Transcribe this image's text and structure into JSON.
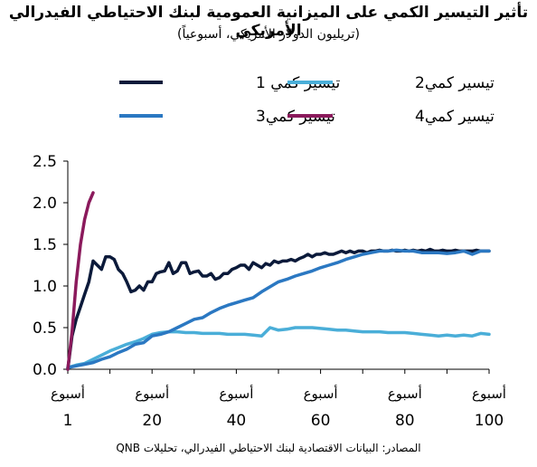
{
  "title": "تأثير التيسير الكمي على الميزانية العمومية لبنك الاحتياطي الفيدرالي الأمريكي",
  "subtitle": "(تريليون الدولار الأمريكي، أسبوعياً)",
  "source": "المصادر: البيانات الاقتصادية لبنك الاحتياطي الفيدرالي، تحليلات QNB",
  "chart_data": {
    "type": "line",
    "xlabel_prefix": "أسبوع",
    "xlim": [
      1,
      100
    ],
    "ylim": [
      0,
      2.5
    ],
    "xticks": [
      1,
      20,
      40,
      60,
      80,
      100
    ],
    "xtick_positions": [
      0,
      20,
      40,
      60,
      80,
      100
    ],
    "yticks": [
      "0.0",
      "0.5",
      "1.0",
      "1.5",
      "2.0",
      "2.5"
    ],
    "ytick_values": [
      0,
      0.5,
      1.0,
      1.5,
      2.0,
      2.5
    ],
    "legend_placement": "top",
    "series": [
      {
        "name": "تيسير كمي 1",
        "color": "#0b1a3a",
        "x": [
          0,
          1,
          2,
          3,
          4,
          5,
          6,
          7,
          8,
          9,
          10,
          11,
          12,
          13,
          14,
          15,
          16,
          17,
          18,
          19,
          20,
          21,
          22,
          23,
          24,
          25,
          26,
          27,
          28,
          29,
          30,
          31,
          32,
          33,
          34,
          35,
          36,
          37,
          38,
          39,
          40,
          41,
          42,
          43,
          44,
          45,
          46,
          47,
          48,
          49,
          50,
          51,
          52,
          53,
          54,
          55,
          56,
          57,
          58,
          59,
          60,
          61,
          62,
          63,
          64,
          65,
          66,
          67,
          68,
          69,
          70,
          71,
          72,
          73,
          74,
          75,
          76,
          77,
          78,
          79,
          80,
          81,
          82,
          83,
          84,
          85,
          86,
          87,
          88,
          89,
          90,
          91,
          92,
          93,
          94,
          95,
          96,
          97,
          98,
          99,
          100
        ],
        "values": [
          0.0,
          0.4,
          0.6,
          0.75,
          0.9,
          1.05,
          1.3,
          1.25,
          1.2,
          1.35,
          1.35,
          1.32,
          1.2,
          1.15,
          1.05,
          0.93,
          0.95,
          1.0,
          0.95,
          1.05,
          1.05,
          1.15,
          1.17,
          1.18,
          1.28,
          1.15,
          1.18,
          1.28,
          1.28,
          1.15,
          1.17,
          1.18,
          1.12,
          1.12,
          1.15,
          1.08,
          1.1,
          1.15,
          1.15,
          1.2,
          1.22,
          1.25,
          1.25,
          1.2,
          1.28,
          1.25,
          1.22,
          1.27,
          1.25,
          1.3,
          1.28,
          1.3,
          1.3,
          1.32,
          1.3,
          1.33,
          1.35,
          1.38,
          1.35,
          1.38,
          1.38,
          1.4,
          1.38,
          1.38,
          1.4,
          1.42,
          1.4,
          1.42,
          1.4,
          1.42,
          1.42,
          1.4,
          1.42,
          1.42,
          1.43,
          1.42,
          1.42,
          1.43,
          1.42,
          1.42,
          1.43,
          1.42,
          1.43,
          1.42,
          1.43,
          1.42,
          1.44,
          1.42,
          1.42,
          1.43,
          1.42,
          1.42,
          1.43,
          1.42,
          1.42,
          1.42,
          1.42,
          1.43,
          1.42,
          1.42,
          1.42
        ]
      },
      {
        "name": "تيسير كمي2",
        "color": "#4aaed8",
        "x": [
          0,
          2,
          4,
          6,
          8,
          10,
          12,
          14,
          16,
          18,
          20,
          22,
          24,
          26,
          28,
          30,
          32,
          34,
          36,
          38,
          40,
          42,
          44,
          46,
          48,
          50,
          52,
          54,
          56,
          58,
          60,
          62,
          64,
          66,
          68,
          70,
          72,
          74,
          76,
          78,
          80,
          82,
          84,
          86,
          88,
          90,
          92,
          94,
          96,
          98,
          100
        ],
        "values": [
          0.02,
          0.05,
          0.07,
          0.12,
          0.17,
          0.22,
          0.26,
          0.3,
          0.33,
          0.37,
          0.42,
          0.44,
          0.45,
          0.45,
          0.44,
          0.44,
          0.43,
          0.43,
          0.43,
          0.42,
          0.42,
          0.42,
          0.41,
          0.4,
          0.5,
          0.47,
          0.48,
          0.5,
          0.5,
          0.5,
          0.49,
          0.48,
          0.47,
          0.47,
          0.46,
          0.45,
          0.45,
          0.45,
          0.44,
          0.44,
          0.44,
          0.43,
          0.42,
          0.41,
          0.4,
          0.41,
          0.4,
          0.41,
          0.4,
          0.43,
          0.42
        ]
      },
      {
        "name": "تيسير كمي3",
        "color": "#2b78c2",
        "x": [
          0,
          2,
          4,
          6,
          8,
          10,
          12,
          14,
          16,
          18,
          20,
          22,
          24,
          26,
          28,
          30,
          32,
          34,
          36,
          38,
          40,
          42,
          44,
          46,
          48,
          50,
          52,
          54,
          56,
          58,
          60,
          62,
          64,
          66,
          68,
          70,
          72,
          74,
          76,
          78,
          80,
          82,
          84,
          86,
          88,
          90,
          92,
          94,
          96,
          98,
          100
        ],
        "values": [
          0.02,
          0.04,
          0.06,
          0.08,
          0.12,
          0.15,
          0.2,
          0.24,
          0.3,
          0.32,
          0.4,
          0.42,
          0.45,
          0.5,
          0.55,
          0.6,
          0.62,
          0.68,
          0.73,
          0.77,
          0.8,
          0.83,
          0.86,
          0.93,
          0.99,
          1.05,
          1.08,
          1.12,
          1.15,
          1.18,
          1.22,
          1.25,
          1.28,
          1.32,
          1.35,
          1.38,
          1.4,
          1.42,
          1.42,
          1.43,
          1.42,
          1.42,
          1.4,
          1.4,
          1.4,
          1.39,
          1.4,
          1.42,
          1.38,
          1.42,
          1.42
        ]
      },
      {
        "name": "تيسير كمي4",
        "color": "#8b1a5c",
        "x": [
          0,
          1,
          2,
          3,
          4,
          5,
          6
        ],
        "values": [
          0.0,
          0.45,
          1.05,
          1.5,
          1.8,
          2.0,
          2.12
        ]
      }
    ]
  }
}
